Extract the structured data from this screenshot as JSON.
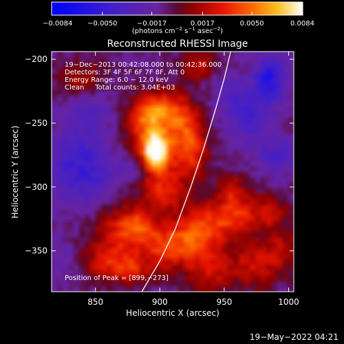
{
  "chart_data": {
    "type": "heatmap",
    "title": "Reconstructed RHESSI Image",
    "xlabel": "Heliocentric X (arcsec)",
    "ylabel": "Heliocentric Y (arcsec)",
    "xlim": [
      816,
      1004
    ],
    "ylim": [
      -382,
      -194
    ],
    "x_ticks": [
      850,
      900,
      950,
      1000
    ],
    "x_tick_labels": [
      "850",
      "900",
      "950",
      "1000"
    ],
    "y_ticks": [
      -200,
      -250,
      -300,
      -350
    ],
    "y_tick_labels": [
      "−200",
      "−250",
      "−300",
      "−350"
    ],
    "colorbar": {
      "range": [
        -0.0084,
        0.0084
      ],
      "ticks": [
        -0.0084,
        -0.005,
        -0.0017,
        0.0017,
        0.005,
        0.0084
      ],
      "tick_labels": [
        "−0.0084",
        "−0.0050",
        "−0.0017",
        "0.0017",
        "0.0050",
        "0.0084"
      ],
      "unit_main": "(photons cm",
      "unit_sup1": "−2",
      "unit_mid1": " s",
      "unit_sup2": "−1",
      "unit_mid2": " asec",
      "unit_sup3": "−2",
      "unit_end": ")"
    },
    "annotations": [
      "19−Dec−2013 00:42:08.000 to 00:42:36.000",
      "Detectors: 3F 4F 5F 6F 7F 8F, Att 0",
      "Energy Range: 6.0 − 12.0 keV",
      "Clean     Total counts: 3.04E+03"
    ],
    "peak_label": "Position of Peak = [899,−273]",
    "peak": [
      899,
      -273
    ],
    "limb_curve": [
      [
        886,
        -382
      ],
      [
        900,
        -358
      ],
      [
        912,
        -333
      ],
      [
        924,
        -300
      ],
      [
        934,
        -270
      ],
      [
        943,
        -240
      ],
      [
        950,
        -215
      ],
      [
        955,
        -194
      ]
    ],
    "blobs": [
      {
        "x": 897,
        "y": -272,
        "intensity": 1.0,
        "sx": 6,
        "sy": 8
      },
      {
        "x": 896,
        "y": -272,
        "intensity": 0.55,
        "sx": 15,
        "sy": 22
      },
      {
        "x": 890,
        "y": -245,
        "intensity": 0.45,
        "sx": 10,
        "sy": 12
      },
      {
        "x": 905,
        "y": -238,
        "intensity": 0.4,
        "sx": 10,
        "sy": 10
      },
      {
        "x": 920,
        "y": -250,
        "intensity": 0.42,
        "sx": 10,
        "sy": 14
      },
      {
        "x": 925,
        "y": -275,
        "intensity": 0.45,
        "sx": 9,
        "sy": 14
      },
      {
        "x": 905,
        "y": -305,
        "intensity": 0.35,
        "sx": 10,
        "sy": 10
      },
      {
        "x": 870,
        "y": -335,
        "intensity": 0.45,
        "sx": 16,
        "sy": 14
      },
      {
        "x": 885,
        "y": -330,
        "intensity": 0.38,
        "sx": 10,
        "sy": 10
      },
      {
        "x": 860,
        "y": -360,
        "intensity": 0.4,
        "sx": 14,
        "sy": 10
      },
      {
        "x": 880,
        "y": -365,
        "intensity": 0.35,
        "sx": 10,
        "sy": 8
      },
      {
        "x": 903,
        "y": -348,
        "intensity": 0.5,
        "sx": 10,
        "sy": 12
      },
      {
        "x": 922,
        "y": -340,
        "intensity": 0.5,
        "sx": 10,
        "sy": 14
      },
      {
        "x": 940,
        "y": -330,
        "intensity": 0.48,
        "sx": 12,
        "sy": 14
      },
      {
        "x": 960,
        "y": -320,
        "intensity": 0.45,
        "sx": 10,
        "sy": 12
      },
      {
        "x": 985,
        "y": -320,
        "intensity": 0.4,
        "sx": 10,
        "sy": 10
      },
      {
        "x": 940,
        "y": -365,
        "intensity": 0.4,
        "sx": 14,
        "sy": 12
      },
      {
        "x": 975,
        "y": -360,
        "intensity": 0.38,
        "sx": 12,
        "sy": 14
      },
      {
        "x": 995,
        "y": -350,
        "intensity": 0.3,
        "sx": 8,
        "sy": 12
      },
      {
        "x": 930,
        "y": -205,
        "intensity": 0.35,
        "sx": 10,
        "sy": 8
      },
      {
        "x": 838,
        "y": -215,
        "intensity": 0.3,
        "sx": 12,
        "sy": 10
      },
      {
        "x": 955,
        "y": -300,
        "intensity": 0.3,
        "sx": 8,
        "sy": 8
      },
      {
        "x": 840,
        "y": -285,
        "intensity": -0.45,
        "sx": 18,
        "sy": 20
      },
      {
        "x": 880,
        "y": -285,
        "intensity": -0.3,
        "sx": 8,
        "sy": 8
      },
      {
        "x": 845,
        "y": -240,
        "intensity": -0.25,
        "sx": 12,
        "sy": 10
      },
      {
        "x": 985,
        "y": -215,
        "intensity": -0.6,
        "sx": 8,
        "sy": 12
      },
      {
        "x": 970,
        "y": -245,
        "intensity": -0.35,
        "sx": 12,
        "sy": 14
      },
      {
        "x": 990,
        "y": -275,
        "intensity": -0.3,
        "sx": 10,
        "sy": 10
      },
      {
        "x": 955,
        "y": -225,
        "intensity": -0.2,
        "sx": 10,
        "sy": 10
      },
      {
        "x": 825,
        "y": -355,
        "intensity": -0.15,
        "sx": 8,
        "sy": 10
      }
    ]
  },
  "footer": {
    "timestamp": "19−May−2022 04:21"
  }
}
